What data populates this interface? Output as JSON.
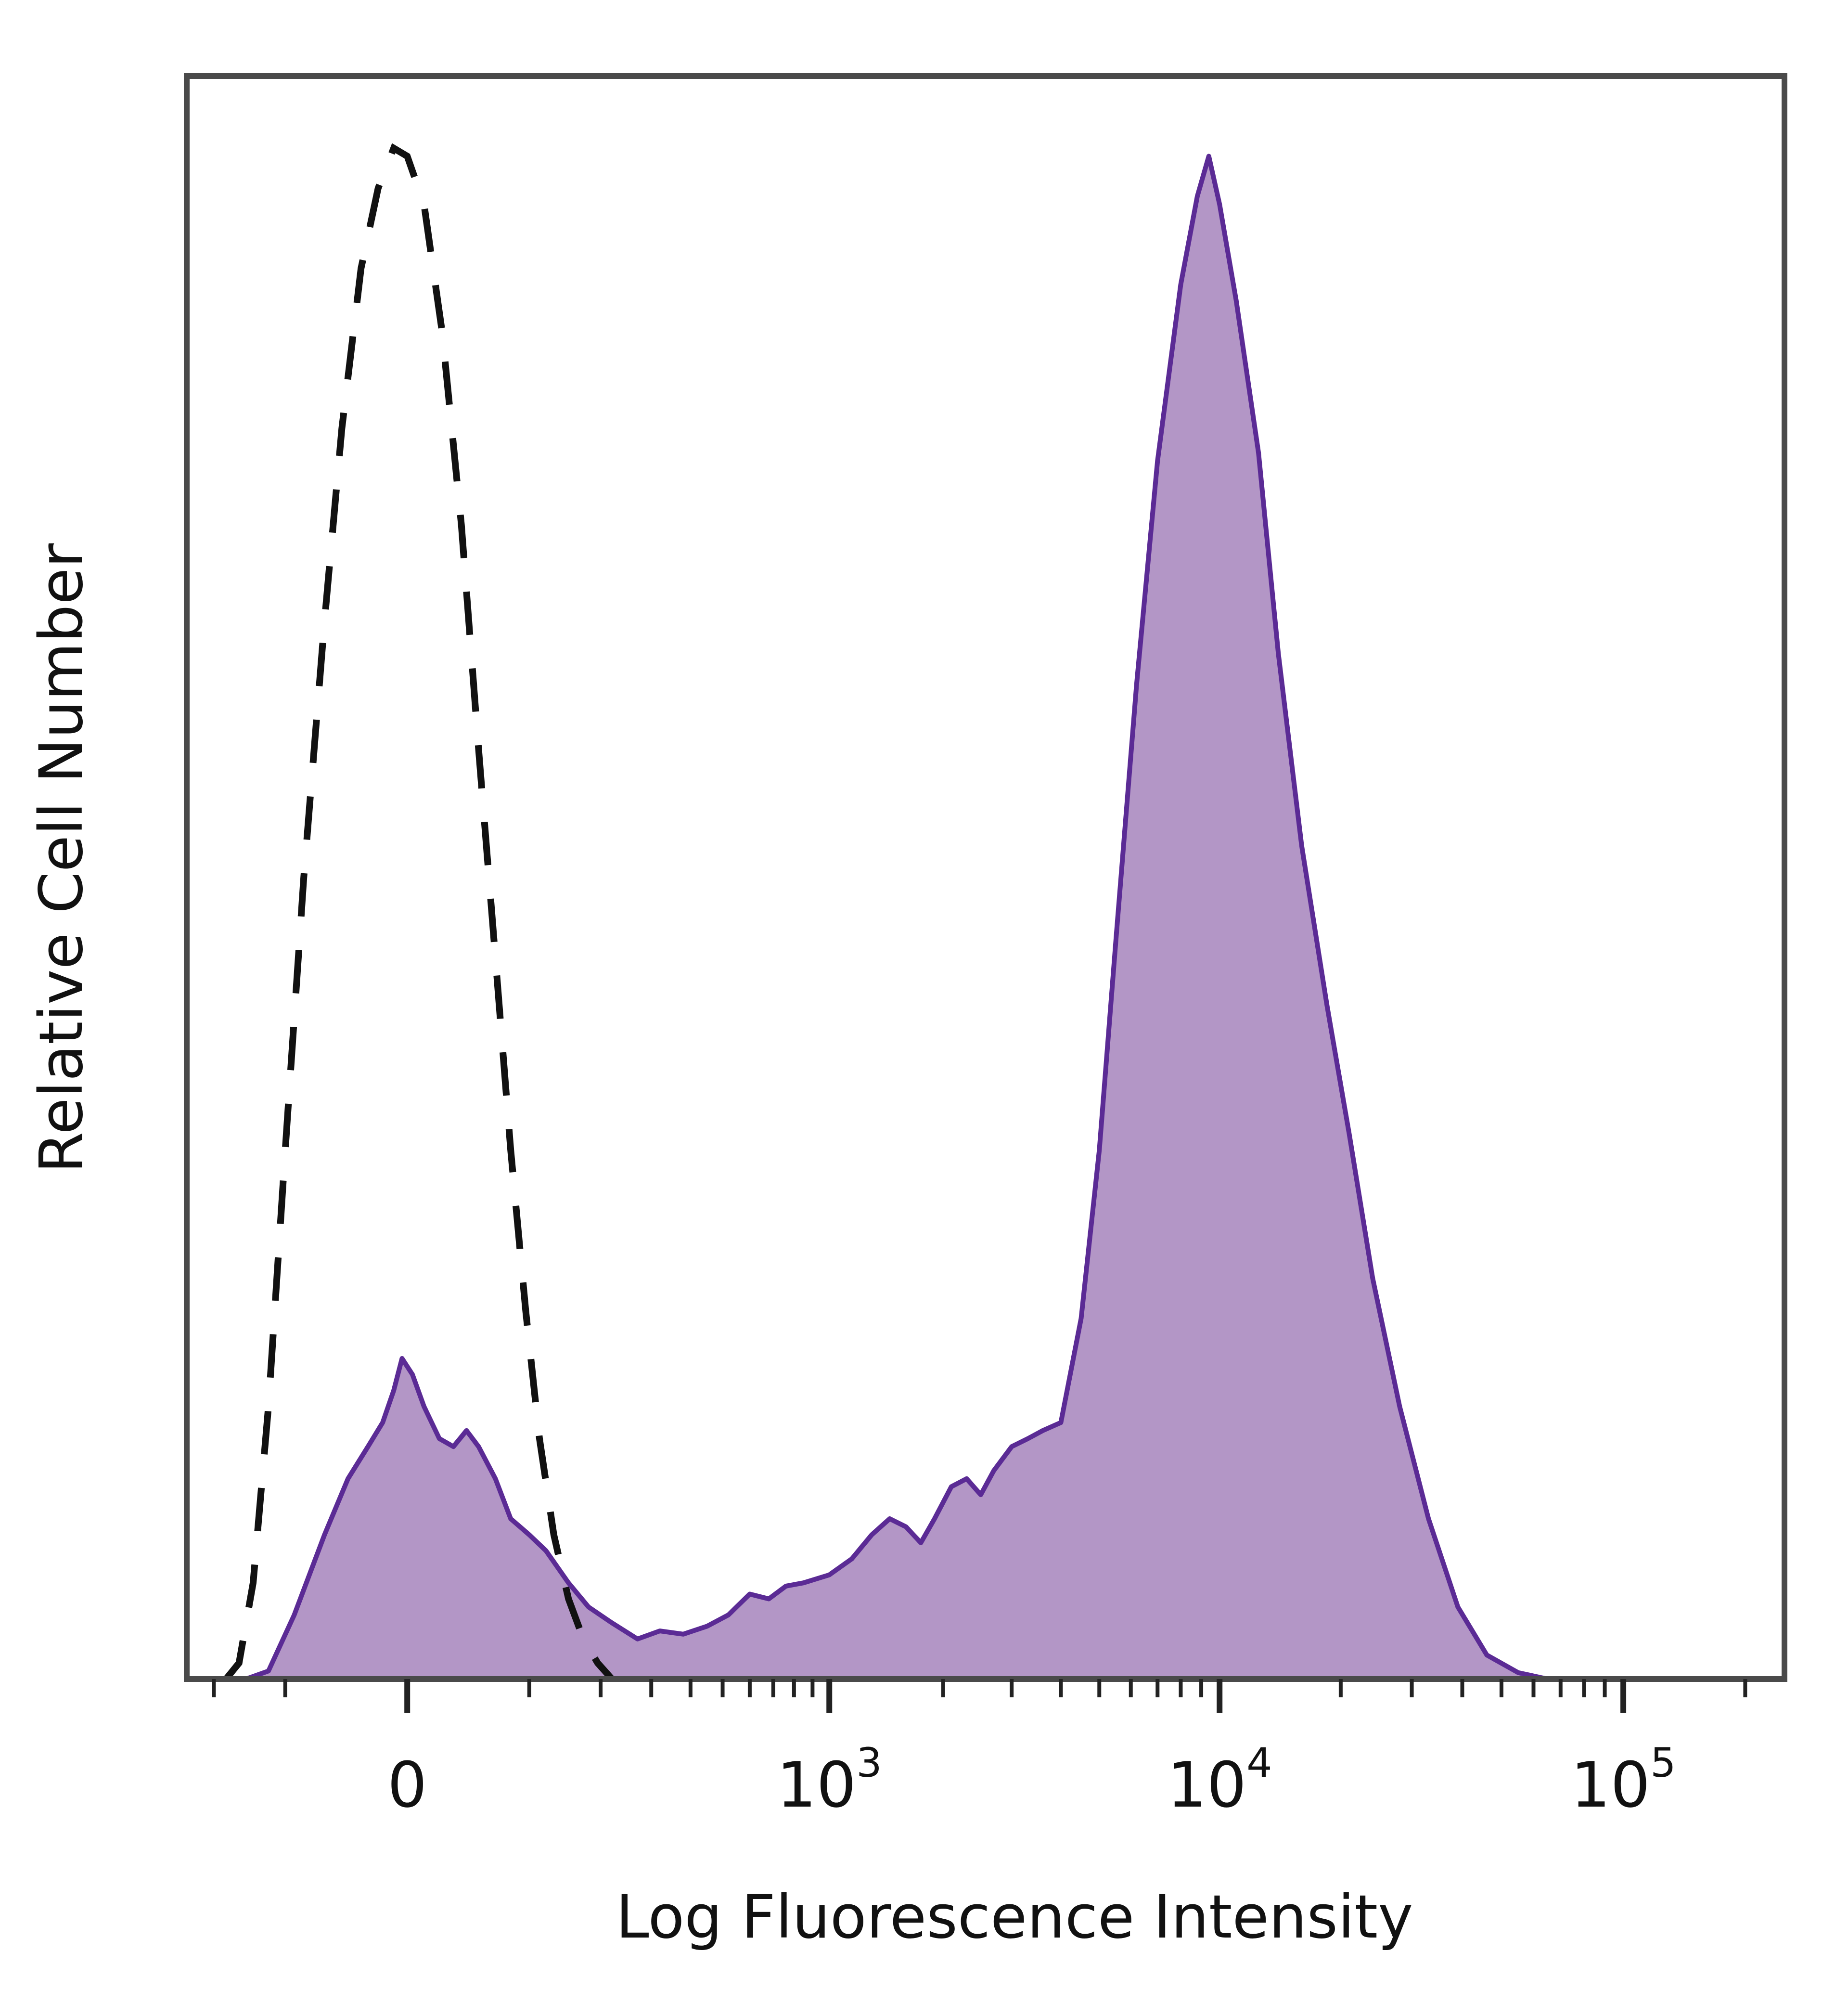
{
  "chart_data": {
    "type": "area",
    "title": "",
    "xlabel": "Log Fluorescence Intensity",
    "ylabel": "Relative Cell Number",
    "x_scale": "biexponential",
    "x_tick_labels": [
      {
        "base": "0",
        "exp": "",
        "value": 0
      },
      {
        "base": "10",
        "exp": "3",
        "value": 1000
      },
      {
        "base": "10",
        "exp": "4",
        "value": 10000
      },
      {
        "base": "10",
        "exp": "5",
        "value": 100000
      }
    ],
    "ylim": [
      0,
      1
    ],
    "grid": false,
    "series": [
      {
        "style": "filled",
        "fill_color": "#b396c6",
        "line_color": "#5b2b95",
        "points": [
          [
            -150,
            0.0
          ],
          [
            -120,
            0.005
          ],
          [
            -90,
            0.04
          ],
          [
            -60,
            0.09
          ],
          [
            -40,
            0.125
          ],
          [
            -25,
            0.145
          ],
          [
            -15,
            0.16
          ],
          [
            -8,
            0.18
          ],
          [
            -3,
            0.2
          ],
          [
            3,
            0.19
          ],
          [
            10,
            0.17
          ],
          [
            20,
            0.15
          ],
          [
            30,
            0.145
          ],
          [
            40,
            0.155
          ],
          [
            50,
            0.145
          ],
          [
            65,
            0.125
          ],
          [
            80,
            0.1
          ],
          [
            100,
            0.09
          ],
          [
            120,
            0.08
          ],
          [
            150,
            0.06
          ],
          [
            180,
            0.045
          ],
          [
            220,
            0.035
          ],
          [
            270,
            0.025
          ],
          [
            320,
            0.03
          ],
          [
            380,
            0.028
          ],
          [
            450,
            0.033
          ],
          [
            520,
            0.04
          ],
          [
            600,
            0.053
          ],
          [
            680,
            0.05
          ],
          [
            760,
            0.058
          ],
          [
            850,
            0.06
          ],
          [
            1000,
            0.065
          ],
          [
            1150,
            0.075
          ],
          [
            1300,
            0.09
          ],
          [
            1450,
            0.1
          ],
          [
            1600,
            0.095
          ],
          [
            1750,
            0.085
          ],
          [
            1900,
            0.1
          ],
          [
            2100,
            0.12
          ],
          [
            2300,
            0.125
          ],
          [
            2500,
            0.115
          ],
          [
            2700,
            0.13
          ],
          [
            3000,
            0.145
          ],
          [
            3300,
            0.15
          ],
          [
            3600,
            0.155
          ],
          [
            4000,
            0.16
          ],
          [
            4500,
            0.225
          ],
          [
            5000,
            0.33
          ],
          [
            5500,
            0.46
          ],
          [
            6200,
            0.62
          ],
          [
            7000,
            0.76
          ],
          [
            8000,
            0.87
          ],
          [
            8800,
            0.925
          ],
          [
            9400,
            0.95
          ],
          [
            10000,
            0.92
          ],
          [
            11000,
            0.86
          ],
          [
            12500,
            0.765
          ],
          [
            14000,
            0.64
          ],
          [
            16000,
            0.52
          ],
          [
            18500,
            0.42
          ],
          [
            21000,
            0.34
          ],
          [
            24000,
            0.25
          ],
          [
            28000,
            0.17
          ],
          [
            33000,
            0.1
          ],
          [
            39000,
            0.045
          ],
          [
            46000,
            0.015
          ],
          [
            55000,
            0.004
          ],
          [
            65000,
            0.0
          ]
        ]
      },
      {
        "style": "dashed",
        "line_color": "#111111",
        "points": [
          [
            -180,
            0.0
          ],
          [
            -160,
            0.01
          ],
          [
            -140,
            0.06
          ],
          [
            -120,
            0.17
          ],
          [
            -100,
            0.33
          ],
          [
            -80,
            0.5
          ],
          [
            -60,
            0.66
          ],
          [
            -45,
            0.78
          ],
          [
            -30,
            0.88
          ],
          [
            -18,
            0.93
          ],
          [
            -8,
            0.955
          ],
          [
            0,
            0.95
          ],
          [
            10,
            0.92
          ],
          [
            22,
            0.84
          ],
          [
            36,
            0.72
          ],
          [
            50,
            0.58
          ],
          [
            65,
            0.45
          ],
          [
            80,
            0.33
          ],
          [
            96,
            0.23
          ],
          [
            112,
            0.15
          ],
          [
            130,
            0.09
          ],
          [
            150,
            0.05
          ],
          [
            172,
            0.025
          ],
          [
            195,
            0.01
          ],
          [
            220,
            0.0
          ]
        ]
      }
    ]
  }
}
